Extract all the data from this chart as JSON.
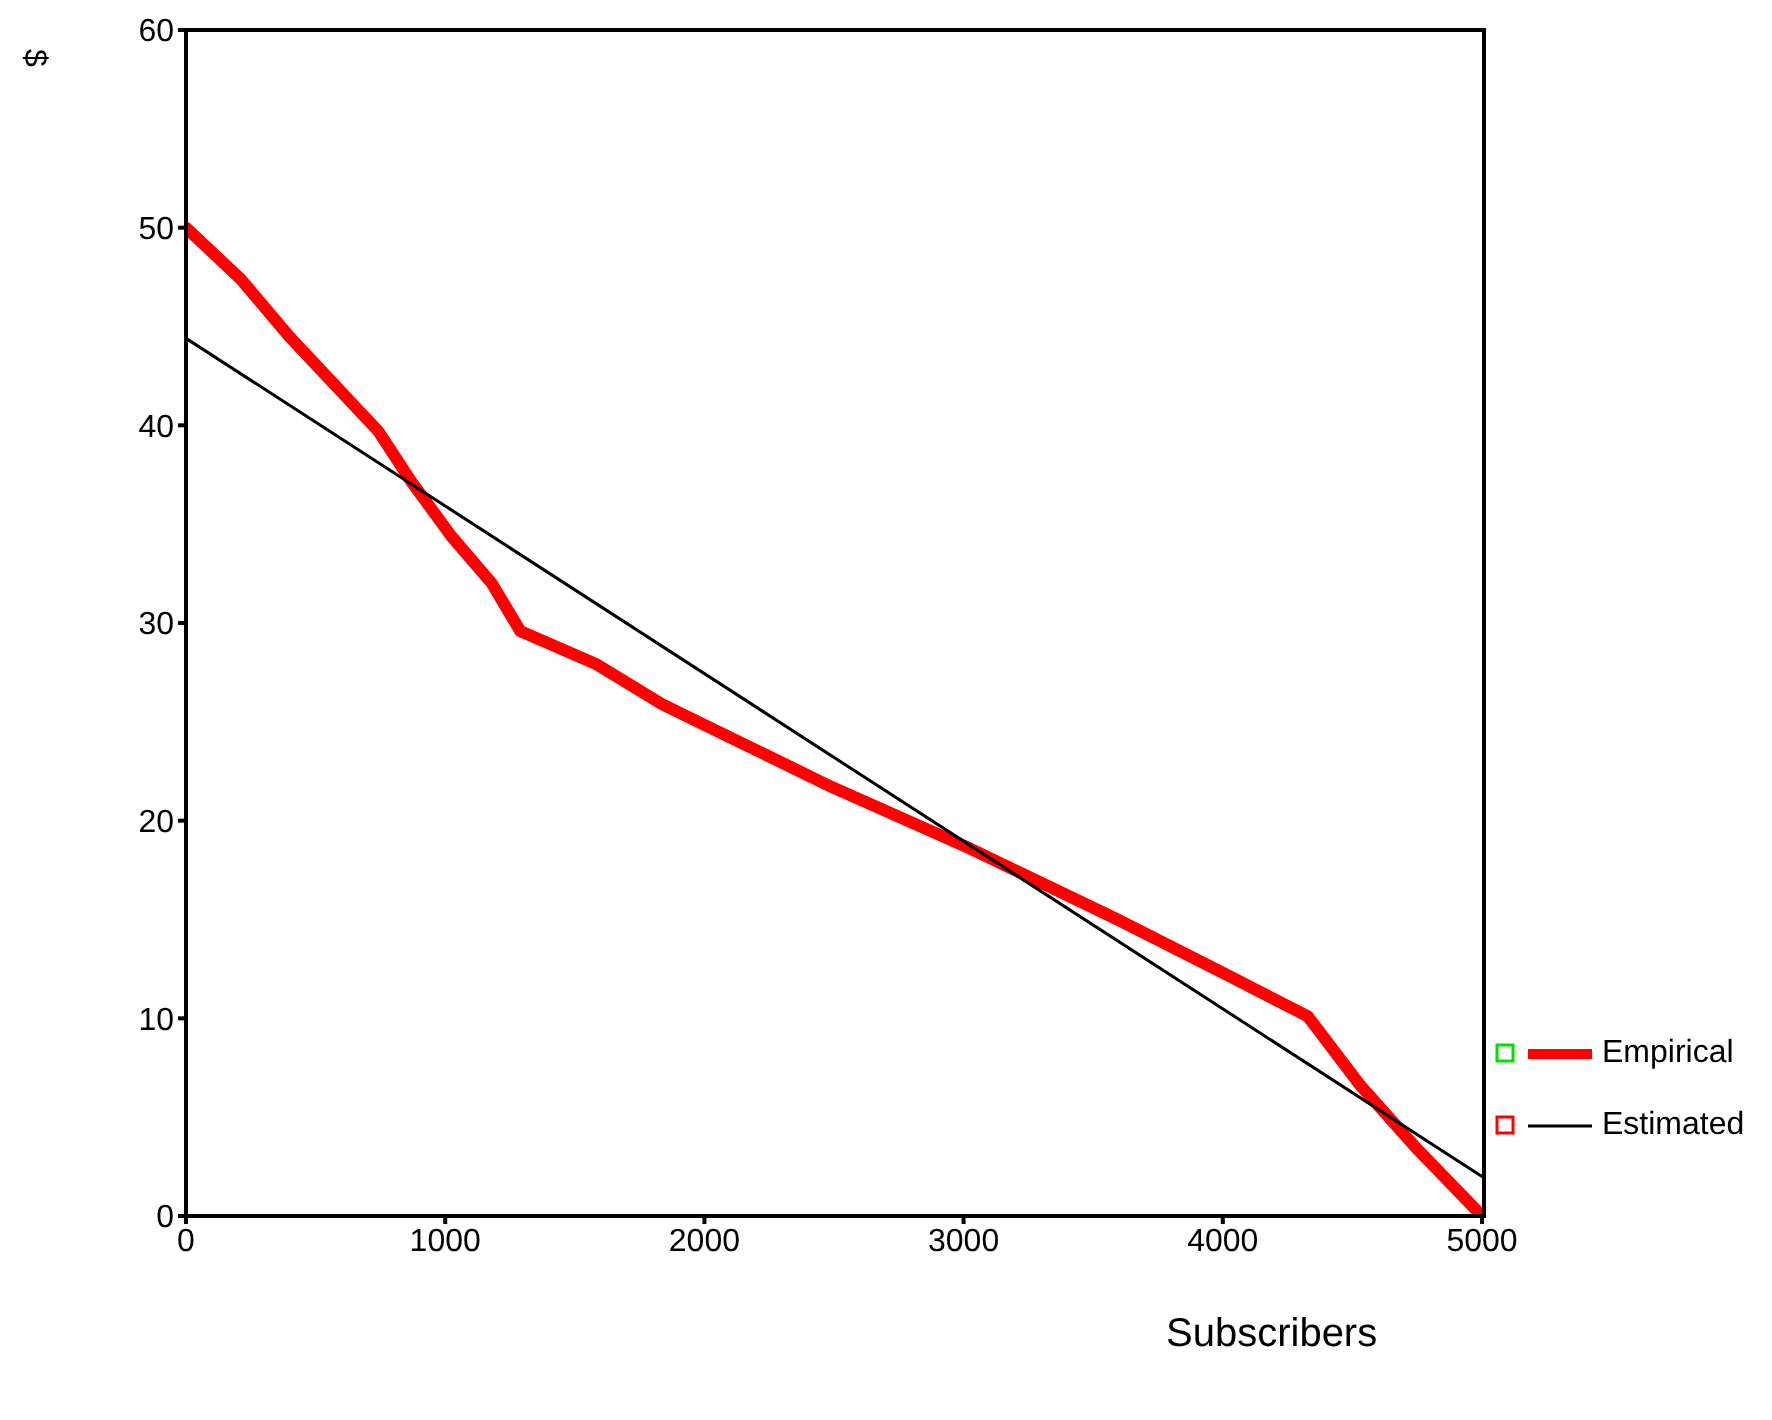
{
  "chart_data": {
    "type": "line",
    "xlabel": "Subscribers",
    "ylabel": "$",
    "xlim": [
      0,
      5000
    ],
    "xticks": [
      0,
      1000,
      2000,
      3000,
      4000,
      5000
    ],
    "ylim": [
      0,
      60
    ],
    "yticks": [
      0,
      10,
      20,
      30,
      40,
      50,
      60
    ],
    "legend": "bottom right",
    "marker": "none",
    "grid": false,
    "series": [
      {
        "name": "Empirical",
        "color": "#ff0000",
        "x": [
          0,
          211,
          398,
          742,
          867,
          1023,
          1180,
          1289,
          1586,
          1836,
          2148,
          2492,
          3023,
          3594,
          4016,
          4328,
          4531,
          4742,
          5000
        ],
        "values": [
          50,
          47.4,
          44.5,
          39.7,
          37.2,
          34.4,
          32,
          29.6,
          27.9,
          25.9,
          23.9,
          21.7,
          18.6,
          15,
          12.2,
          10.1,
          6.6,
          3.5,
          0
        ]
      },
      {
        "name": "Estimated",
        "color": "#000000",
        "x": [
          0,
          5000
        ],
        "values": [
          44.4,
          2
        ]
      }
    ]
  }
}
